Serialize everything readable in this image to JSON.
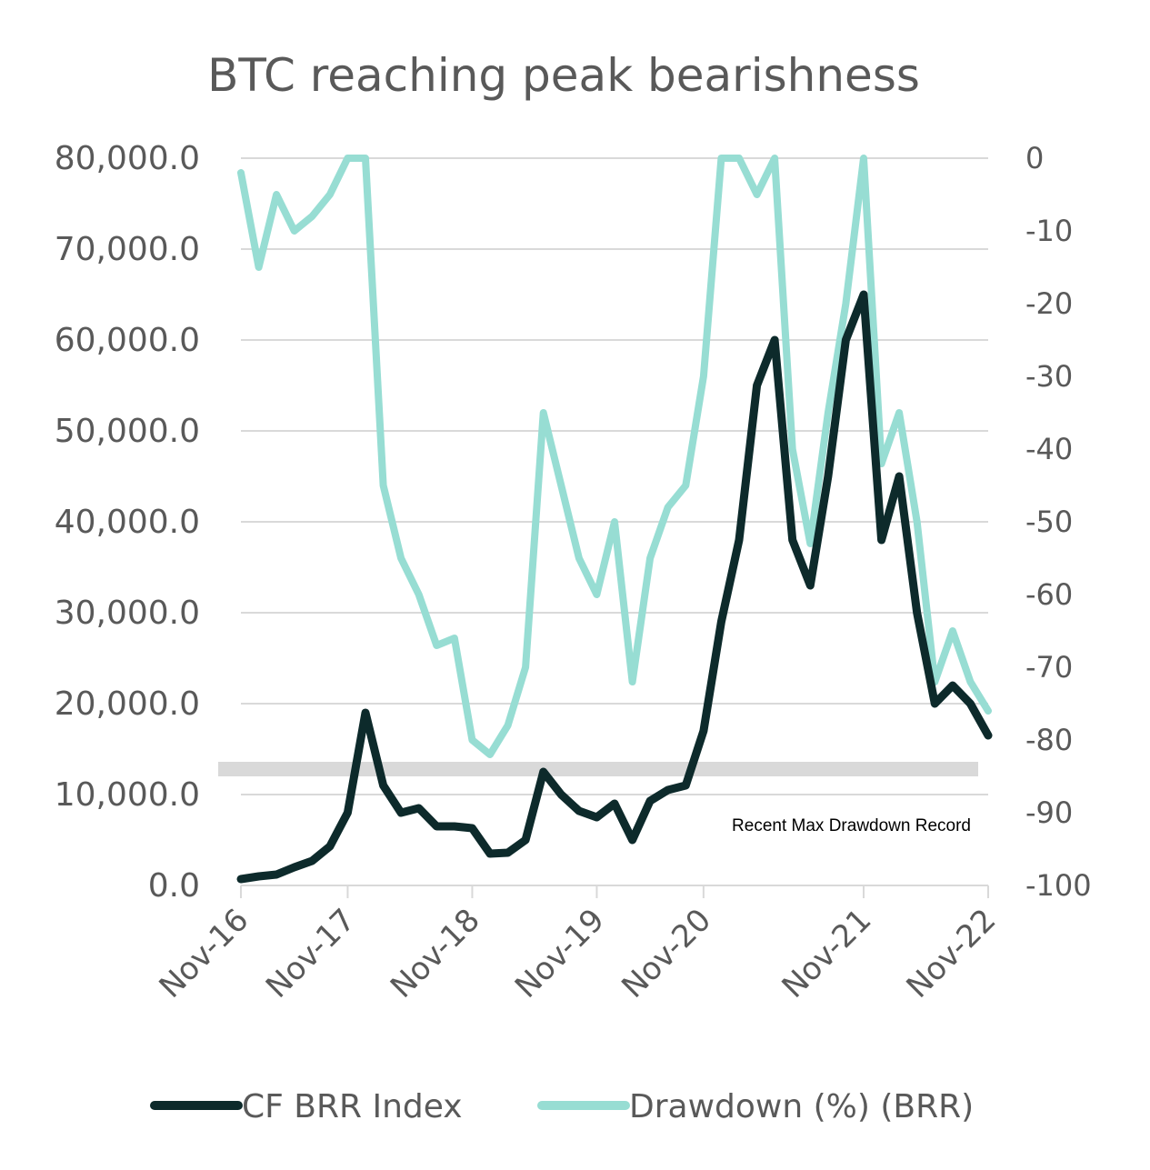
{
  "chart_data": {
    "type": "line",
    "title": "BTC reaching peak bearishness",
    "x": [
      "Nov-16",
      "Jan-17",
      "Mar-17",
      "May-17",
      "Jul-17",
      "Sep-17",
      "Nov-17",
      "Dec-17",
      "Jan-18",
      "Mar-18",
      "May-18",
      "Jul-18",
      "Sep-18",
      "Nov-18",
      "Dec-18",
      "Feb-19",
      "Apr-19",
      "Jun-19",
      "Jul-19",
      "Sep-19",
      "Nov-19",
      "Jan-20",
      "Mar-20",
      "May-20",
      "Jul-20",
      "Sep-20",
      "Nov-20",
      "Dec-20",
      "Jan-21",
      "Feb-21",
      "Apr-21",
      "May-21",
      "Jul-21",
      "Sep-21",
      "Oct-21",
      "Nov-21",
      "Jan-22",
      "Mar-22",
      "May-22",
      "Jun-22",
      "Aug-22",
      "Oct-22",
      "Nov-22"
    ],
    "x_ticks": [
      "Nov-16",
      "Nov-17",
      "Nov-18",
      "Nov-19",
      "Nov-20",
      "Nov-21",
      "Nov-22"
    ],
    "series": [
      {
        "name": "CF BRR Index",
        "axis": "left",
        "color": "#0d2a2b",
        "values": [
          700,
          1000,
          1200,
          2000,
          2700,
          4300,
          8000,
          19000,
          11000,
          8000,
          8500,
          6500,
          6500,
          6300,
          3500,
          3600,
          5000,
          12500,
          10000,
          8200,
          7500,
          9000,
          5000,
          9300,
          10500,
          11000,
          17000,
          29000,
          38000,
          55000,
          60000,
          38000,
          33000,
          45000,
          60000,
          65000,
          38000,
          45000,
          30000,
          20000,
          22000,
          20000,
          16500
        ]
      },
      {
        "name": "Drawdown (%) (BRR)",
        "axis": "right",
        "color": "#97ddd3",
        "values": [
          -2,
          -15,
          -5,
          -10,
          -8,
          -5,
          0,
          0,
          -45,
          -55,
          -60,
          -67,
          -66,
          -80,
          -82,
          -78,
          -70,
          -35,
          -45,
          -55,
          -60,
          -50,
          -72,
          -55,
          -48,
          -45,
          -30,
          0,
          0,
          -5,
          0,
          -40,
          -53,
          -35,
          -20,
          0,
          -42,
          -35,
          -50,
          -72,
          -65,
          -72,
          -76
        ]
      }
    ],
    "ylim_left": [
      0,
      80000
    ],
    "yticks_left": [
      "0.0",
      "10,000.0",
      "20,000.0",
      "30,000.0",
      "40,000.0",
      "50,000.0",
      "60,000.0",
      "70,000.0",
      "80,000.0"
    ],
    "ylim_right": [
      -100,
      0
    ],
    "yticks_right": [
      "-100",
      "-90",
      "-80",
      "-70",
      "-60",
      "-50",
      "-40",
      "-30",
      "-20",
      "-10",
      "0"
    ],
    "grid": true,
    "legend_position": "bottom",
    "annotation": {
      "label": "Recent Max Drawdown Record",
      "drawdown_level": -84,
      "band_color": "#d9d9d9"
    }
  }
}
